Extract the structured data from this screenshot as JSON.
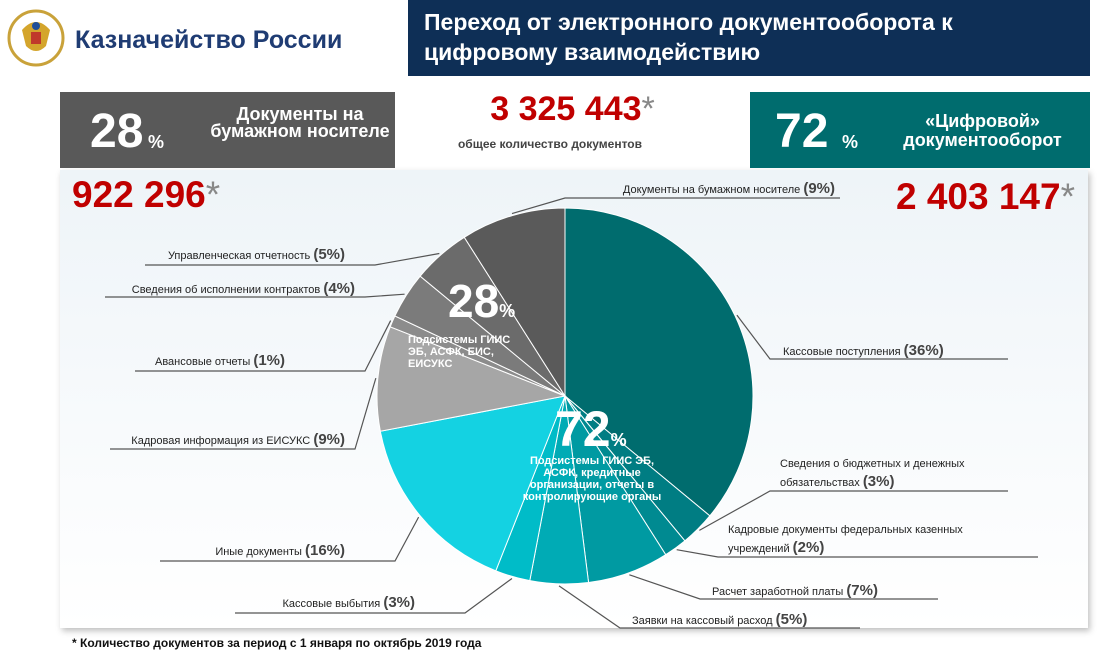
{
  "header": {
    "org": "Казначейство России",
    "title": "Переход от электронного документооборота к цифровому взаимодействию"
  },
  "summary": {
    "paper": {
      "percent": "28",
      "percent_sign": "%",
      "label": "Документы на бумажном носителе",
      "count": "922 296",
      "asterisk": "*"
    },
    "total": {
      "count": "3 325 443",
      "asterisk": "*",
      "label": "общее количество документов"
    },
    "digital": {
      "percent": "72",
      "percent_sign": "%",
      "label": "«Цифровой» документооборот",
      "count": "2 403 147",
      "asterisk": "*"
    }
  },
  "pie_notes": [
    {
      "percent": "28",
      "percent_sign": "%",
      "text": "Подсистемы ГИИС ЭБ, АСФК, ЕИС, ЕИСУКС"
    },
    {
      "percent": "72",
      "percent_sign": "%",
      "text": "Подсистемы ГИИС ЭБ, АСФК, кредитные организации, отчеты в контролирующие органы"
    }
  ],
  "chart_data": {
    "type": "pie",
    "categories": [
      "Кассовые поступления",
      "Сведения о бюджетных и денежных обязательствах",
      "Кадровые документы федеральных казенных учреждений",
      "Расчет заработной платы",
      "Заявки на кассовый расход",
      "Кассовые выбытия",
      "Иные документы",
      "Кадровая информация из ЕИСУКС",
      "Авансовые отчеты",
      "Сведения об исполнении контрактов",
      "Управленческая отчетность",
      "Документы на бумажном носителе"
    ],
    "values": [
      36,
      3,
      2,
      7,
      5,
      3,
      16,
      9,
      1,
      4,
      5,
      9
    ],
    "value_labels": [
      "(36%)",
      "(3%)",
      "(2%)",
      "(7%)",
      "(5%)",
      "(3%)",
      "(16%)",
      "(9%)",
      "(1%)",
      "(4%)",
      "(5%)",
      "(9%)"
    ],
    "colors": [
      "#006c6e",
      "#007d83",
      "#008a91",
      "#009aa2",
      "#00abb5",
      "#00bcc8",
      "#14d2e2",
      "#a6a6a6",
      "#8c8c8c",
      "#7b7b7b",
      "#6b6b6b",
      "#5a5a5a"
    ]
  },
  "footnote": "* Количество документов за период с 1 января по октябрь 2019 года"
}
